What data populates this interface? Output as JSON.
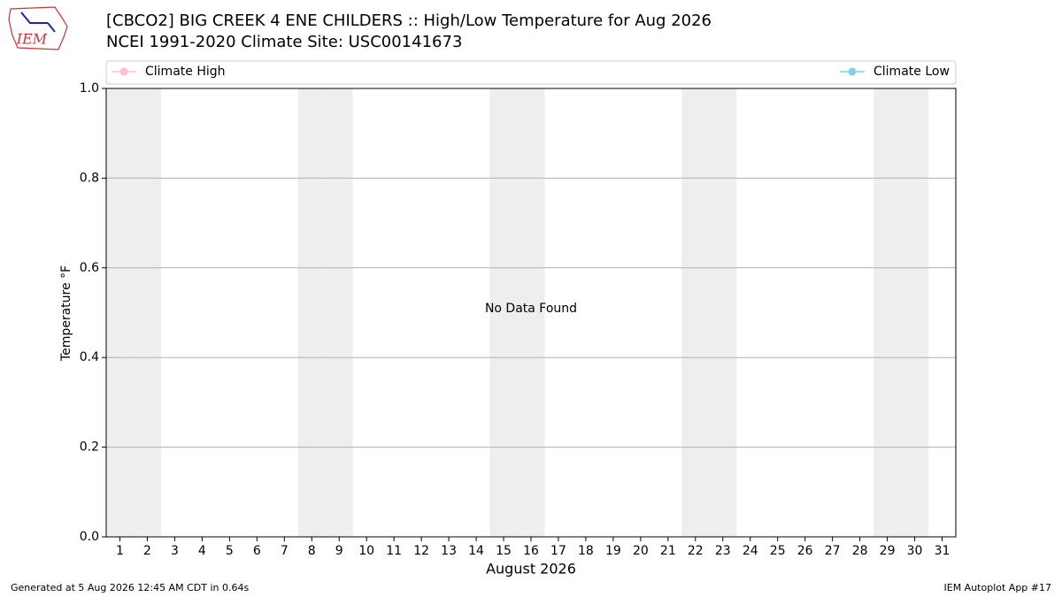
{
  "logo_text": "IEM",
  "chart_data": {
    "type": "line",
    "title": "[CBCO2] BIG CREEK 4 ENE CHILDERS :: High/Low Temperature for Aug 2026",
    "subtitle": "NCEI 1991-2020 Climate Site: USC00141673",
    "ylabel": "Temperature °F",
    "xlabel": "August 2026",
    "annotation": "No Data Found",
    "categories": [
      "1",
      "2",
      "3",
      "4",
      "5",
      "6",
      "7",
      "8",
      "9",
      "10",
      "11",
      "12",
      "13",
      "14",
      "15",
      "16",
      "17",
      "18",
      "19",
      "20",
      "21",
      "22",
      "23",
      "24",
      "25",
      "26",
      "27",
      "28",
      "29",
      "30",
      "31"
    ],
    "series": [
      {
        "name": "Climate High",
        "color": "pink",
        "values": [
          null,
          null,
          null,
          null,
          null,
          null,
          null,
          null,
          null,
          null,
          null,
          null,
          null,
          null,
          null,
          null,
          null,
          null,
          null,
          null,
          null,
          null,
          null,
          null,
          null,
          null,
          null,
          null,
          null,
          null,
          null
        ]
      },
      {
        "name": "Climate Low",
        "color": "skyblue",
        "values": [
          null,
          null,
          null,
          null,
          null,
          null,
          null,
          null,
          null,
          null,
          null,
          null,
          null,
          null,
          null,
          null,
          null,
          null,
          null,
          null,
          null,
          null,
          null,
          null,
          null,
          null,
          null,
          null,
          null,
          null,
          null
        ]
      }
    ],
    "shaded_days": [
      1,
      2,
      8,
      9,
      15,
      16,
      22,
      23,
      29,
      30
    ],
    "shade_color": "#eeeeee",
    "ylim": [
      0,
      1
    ],
    "yticks": [
      {
        "value": 0,
        "label": "0.0"
      },
      0.2,
      0.4,
      0.6,
      0.8,
      {
        "value": 1,
        "label": "1.0"
      }
    ],
    "grid": true,
    "footer_left": "Generated at 5 Aug 2026 12:45 AM CDT in 0.64s",
    "footer_right": "IEM Autoplot App #17"
  }
}
